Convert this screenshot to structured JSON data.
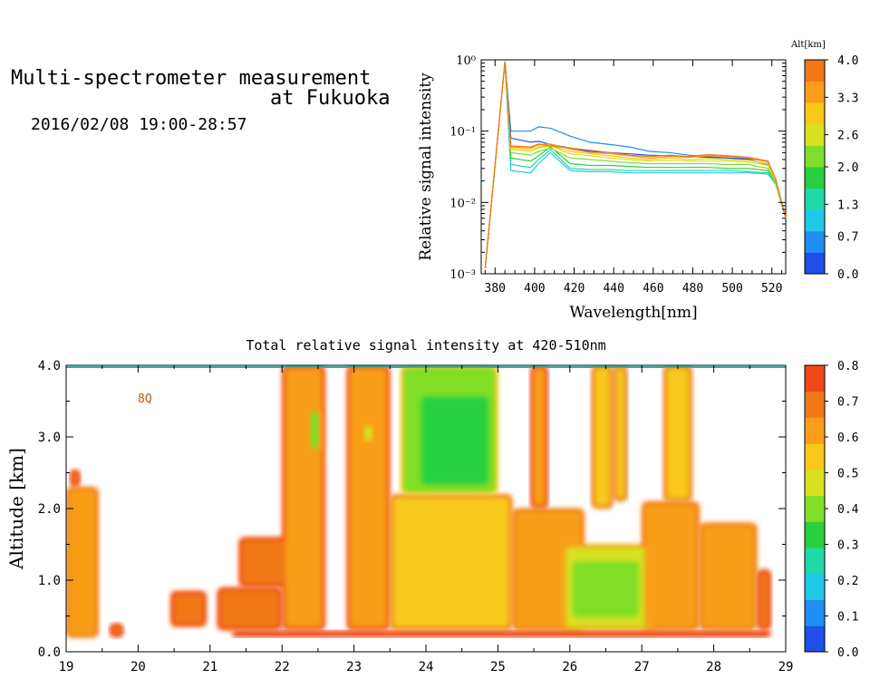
{
  "header": {
    "title_line1": "Multi-spectrometer measurement",
    "title_line2": "at Fukuoka",
    "datetime": "2016/02/08 19:00-28:57"
  },
  "chart_data": [
    {
      "type": "line",
      "xlabel": "Wavelength[nm]",
      "ylabel": "Relative signal intensity",
      "yscale": "log",
      "xlim": [
        373,
        527
      ],
      "ylim": [
        0.001,
        1
      ],
      "xticks": [
        "380",
        "400",
        "420",
        "440",
        "460",
        "480",
        "500",
        "520"
      ],
      "yticks": [
        "10⁻³",
        "10⁻²",
        "10⁻¹",
        "10⁰"
      ],
      "x": [
        375,
        385,
        388,
        398,
        402,
        408,
        418,
        428,
        438,
        448,
        458,
        468,
        478,
        488,
        498,
        508,
        518,
        522,
        527
      ],
      "colorbar": {
        "title": "Alt[km]",
        "ticks": [
          "0.0",
          "0.7",
          "1.3",
          "2.0",
          "2.6",
          "3.3",
          "4.0"
        ],
        "colors": [
          "#1f4fe6",
          "#1e8ef2",
          "#20c8e8",
          "#20d8a8",
          "#28d040",
          "#80de28",
          "#d8e020",
          "#f8c81a",
          "#f89e18",
          "#f07818"
        ]
      },
      "series": [
        {
          "color": "#1e8ef2",
          "values": [
            0.0012,
            0.95,
            0.1,
            0.1,
            0.115,
            0.11,
            0.085,
            0.07,
            0.065,
            0.06,
            0.052,
            0.05,
            0.046,
            0.044,
            0.042,
            0.04,
            0.034,
            0.02,
            0.006
          ]
        },
        {
          "color": "#1f4fe6",
          "values": [
            0.0012,
            0.95,
            0.08,
            0.07,
            0.072,
            0.065,
            0.058,
            0.052,
            0.05,
            0.048,
            0.046,
            0.045,
            0.044,
            0.043,
            0.042,
            0.041,
            0.038,
            0.02,
            0.006
          ]
        },
        {
          "color": "#20c8e8",
          "values": [
            0.0012,
            0.95,
            0.028,
            0.026,
            0.035,
            0.05,
            0.028,
            0.027,
            0.027,
            0.026,
            0.026,
            0.026,
            0.026,
            0.026,
            0.026,
            0.026,
            0.025,
            0.018,
            0.006
          ]
        },
        {
          "color": "#20d8a8",
          "values": [
            0.0012,
            0.95,
            0.034,
            0.031,
            0.04,
            0.055,
            0.03,
            0.029,
            0.029,
            0.028,
            0.028,
            0.028,
            0.028,
            0.028,
            0.028,
            0.027,
            0.026,
            0.018,
            0.006
          ]
        },
        {
          "color": "#28d040",
          "values": [
            0.0012,
            0.95,
            0.042,
            0.038,
            0.045,
            0.06,
            0.035,
            0.033,
            0.033,
            0.032,
            0.031,
            0.031,
            0.031,
            0.031,
            0.03,
            0.03,
            0.028,
            0.019,
            0.006
          ]
        },
        {
          "color": "#80de28",
          "values": [
            0.0012,
            0.95,
            0.05,
            0.046,
            0.052,
            0.058,
            0.042,
            0.04,
            0.038,
            0.036,
            0.035,
            0.035,
            0.035,
            0.035,
            0.034,
            0.034,
            0.03,
            0.019,
            0.006
          ]
        },
        {
          "color": "#d8e020",
          "values": [
            0.0012,
            0.95,
            0.055,
            0.052,
            0.058,
            0.062,
            0.048,
            0.045,
            0.042,
            0.04,
            0.038,
            0.039,
            0.038,
            0.038,
            0.038,
            0.037,
            0.033,
            0.02,
            0.006
          ]
        },
        {
          "color": "#f8c81a",
          "values": [
            0.0012,
            0.95,
            0.058,
            0.055,
            0.06,
            0.063,
            0.052,
            0.048,
            0.045,
            0.042,
            0.04,
            0.042,
            0.04,
            0.041,
            0.04,
            0.039,
            0.035,
            0.02,
            0.006
          ]
        },
        {
          "color": "#f89e18",
          "values": [
            0.0012,
            0.95,
            0.06,
            0.058,
            0.064,
            0.066,
            0.056,
            0.05,
            0.048,
            0.045,
            0.042,
            0.044,
            0.043,
            0.045,
            0.044,
            0.042,
            0.037,
            0.021,
            0.006
          ]
        },
        {
          "color": "#f07818",
          "values": [
            0.0012,
            0.95,
            0.062,
            0.06,
            0.066,
            0.062,
            0.058,
            0.054,
            0.05,
            0.046,
            0.044,
            0.046,
            0.044,
            0.047,
            0.045,
            0.043,
            0.038,
            0.021,
            0.006
          ]
        }
      ]
    },
    {
      "type": "heatmap",
      "title": "Total relative signal intensity at 420-510nm",
      "ylabel": "Altitude [km]",
      "xlim": [
        19,
        29
      ],
      "ylim": [
        0,
        4
      ],
      "xticks": [
        "19",
        "20",
        "21",
        "22",
        "23",
        "24",
        "25",
        "26",
        "27",
        "28",
        "29"
      ],
      "yticks": [
        "0.0",
        "1.0",
        "2.0",
        "3.0",
        "4.0"
      ],
      "annotation": "8Q",
      "colorbar": {
        "ticks": [
          "0.0",
          "0.1",
          "0.2",
          "0.3",
          "0.4",
          "0.5",
          "0.6",
          "0.7",
          "0.8"
        ],
        "colors": [
          "#1f4fe6",
          "#1e8ef2",
          "#20c8e8",
          "#20d8a8",
          "#28d040",
          "#80de28",
          "#d8e020",
          "#f8c81a",
          "#f89e18",
          "#f07818",
          "#f04818"
        ]
      },
      "regions": [
        {
          "t0": 19.0,
          "t1": 19.45,
          "z0": 0.2,
          "z1": 2.3,
          "v": 0.6
        },
        {
          "t0": 19.05,
          "t1": 19.2,
          "z0": 2.3,
          "z1": 2.55,
          "v": 0.7
        },
        {
          "t0": 19.6,
          "t1": 19.8,
          "z0": 0.2,
          "z1": 0.4,
          "v": 0.72
        },
        {
          "t0": 20.45,
          "t1": 20.95,
          "z0": 0.35,
          "z1": 0.85,
          "v": 0.72
        },
        {
          "t0": 21.1,
          "t1": 22.0,
          "z0": 0.3,
          "z1": 0.9,
          "v": 0.72
        },
        {
          "t0": 21.4,
          "t1": 22.1,
          "z0": 0.9,
          "z1": 1.6,
          "v": 0.72
        },
        {
          "t0": 22.0,
          "t1": 22.6,
          "z0": 0.3,
          "z1": 4.0,
          "v": 0.62
        },
        {
          "t0": 22.35,
          "t1": 22.55,
          "z0": 2.8,
          "z1": 3.4,
          "v": 0.42
        },
        {
          "t0": 22.9,
          "t1": 23.5,
          "z0": 0.3,
          "z1": 4.0,
          "v": 0.62
        },
        {
          "t0": 23.1,
          "t1": 23.3,
          "z0": 2.9,
          "z1": 3.2,
          "v": 0.5
        },
        {
          "t0": 23.5,
          "t1": 25.2,
          "z0": 0.3,
          "z1": 2.2,
          "v": 0.55
        },
        {
          "t0": 23.65,
          "t1": 25.0,
          "z0": 2.2,
          "z1": 4.0,
          "v": 0.4
        },
        {
          "t0": 23.9,
          "t1": 24.9,
          "z0": 2.3,
          "z1": 3.6,
          "v": 0.33
        },
        {
          "t0": 25.2,
          "t1": 26.2,
          "z0": 0.3,
          "z1": 2.0,
          "v": 0.6
        },
        {
          "t0": 25.45,
          "t1": 25.7,
          "z0": 2.0,
          "z1": 4.0,
          "v": 0.62
        },
        {
          "t0": 25.9,
          "t1": 27.2,
          "z0": 0.3,
          "z1": 1.5,
          "v": 0.48
        },
        {
          "t0": 26.0,
          "t1": 27.0,
          "z0": 0.45,
          "z1": 1.3,
          "v": 0.42
        },
        {
          "t0": 26.3,
          "t1": 26.6,
          "z0": 2.0,
          "z1": 4.0,
          "v": 0.55
        },
        {
          "t0": 26.6,
          "t1": 26.8,
          "z0": 2.1,
          "z1": 4.0,
          "v": 0.55
        },
        {
          "t0": 27.0,
          "t1": 27.8,
          "z0": 0.3,
          "z1": 2.1,
          "v": 0.6
        },
        {
          "t0": 27.3,
          "t1": 27.7,
          "z0": 2.1,
          "z1": 4.0,
          "v": 0.55
        },
        {
          "t0": 27.8,
          "t1": 28.6,
          "z0": 0.3,
          "z1": 1.8,
          "v": 0.6
        },
        {
          "t0": 28.6,
          "t1": 28.8,
          "z0": 0.3,
          "z1": 1.15,
          "v": 0.68
        },
        {
          "t0": 21.3,
          "t1": 28.8,
          "z0": 0.2,
          "z1": 0.3,
          "v": 0.78
        }
      ]
    }
  ]
}
